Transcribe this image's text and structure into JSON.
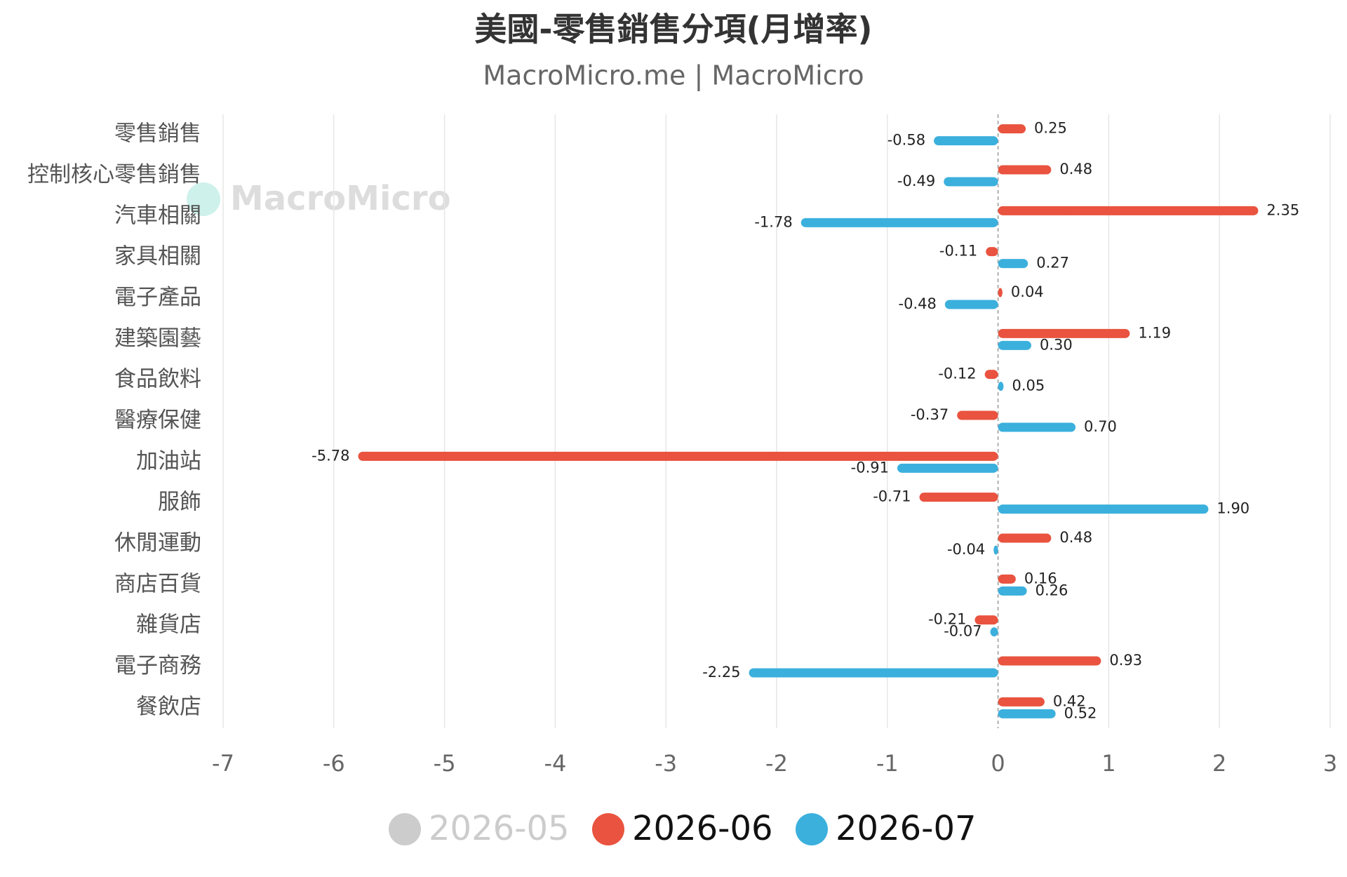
{
  "chart_data": {
    "type": "hbar",
    "title": "美國-零售銷售分項(月增率)",
    "subtitle": "MacroMicro.me | MacroMicro",
    "watermark": "MacroMicro",
    "categories": [
      "零售銷售",
      "控制核心零售銷售",
      "汽車相關",
      "家具相關",
      "電子產品",
      "建築園藝",
      "食品飲料",
      "醫療保健",
      "加油站",
      "服飾",
      "休閒運動",
      "商店百貨",
      "雜貨店",
      "電子商務",
      "餐飲店"
    ],
    "series": [
      {
        "name": "2026-05",
        "color": "#cccccc",
        "hidden": true,
        "values": [
          null,
          null,
          null,
          null,
          null,
          null,
          null,
          null,
          null,
          null,
          null,
          null,
          null,
          null,
          null
        ]
      },
      {
        "name": "2026-06",
        "color": "#e9533f",
        "values": [
          0.25,
          0.48,
          2.35,
          -0.11,
          0.04,
          1.19,
          -0.12,
          -0.37,
          -5.78,
          -0.71,
          0.48,
          0.16,
          -0.21,
          0.93,
          0.42
        ],
        "value_labels": [
          "0.25",
          "0.48",
          "2.35",
          "-0.11",
          "0.04",
          "1.19",
          "-0.12",
          "-0.37",
          "-5.78",
          "-0.71",
          "0.48",
          "0.16",
          "-0.21",
          "0.93",
          "0.42"
        ]
      },
      {
        "name": "2026-07",
        "color": "#3bb0dd",
        "values": [
          -0.58,
          -0.49,
          -1.78,
          0.27,
          -0.48,
          0.3,
          0.05,
          0.7,
          -0.91,
          1.9,
          -0.04,
          0.26,
          -0.07,
          -2.25,
          0.52
        ],
        "value_labels": [
          "-0.58",
          "-0.49",
          "-1.78",
          "0.27",
          "-0.48",
          "0.30",
          "0.05",
          "0.70",
          "-0.91",
          "1.90",
          "-0.04",
          "0.26",
          "-0.07",
          "-2.25",
          "0.52"
        ]
      }
    ],
    "xlim": [
      -7,
      3
    ],
    "xticks": [
      -7,
      -6,
      -5,
      -4,
      -3,
      -2,
      -1,
      0,
      1,
      2,
      3
    ],
    "grid": true,
    "legend": "bottom"
  }
}
